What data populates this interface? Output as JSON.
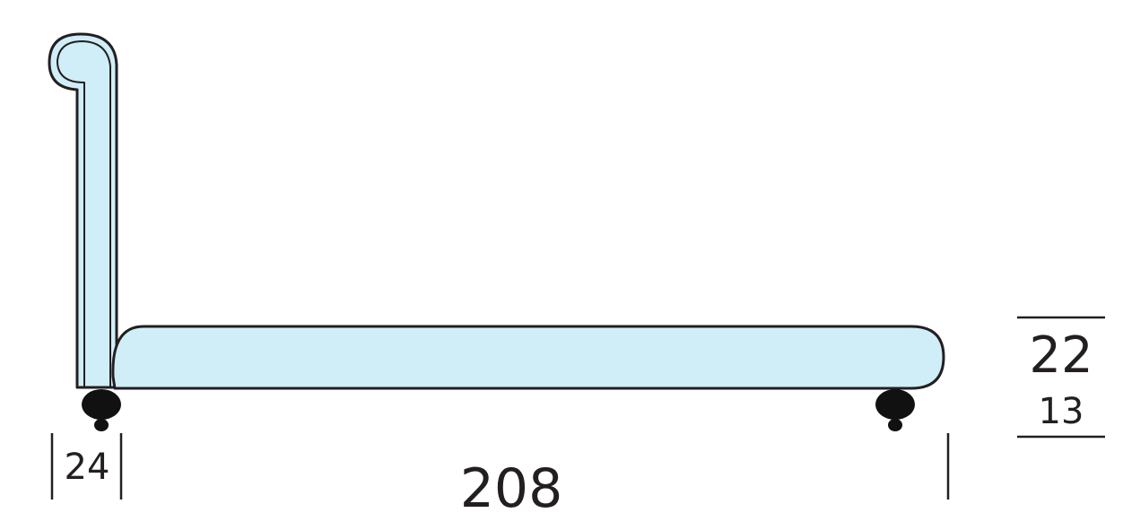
{
  "dimensions": {
    "headboard_depth": "24",
    "total_length": "208",
    "total_height": "22",
    "leg_height": "13"
  },
  "colors": {
    "upholstery": "#cfeef8",
    "outline": "#231f20",
    "feet": "#111111",
    "background": "#ffffff"
  }
}
